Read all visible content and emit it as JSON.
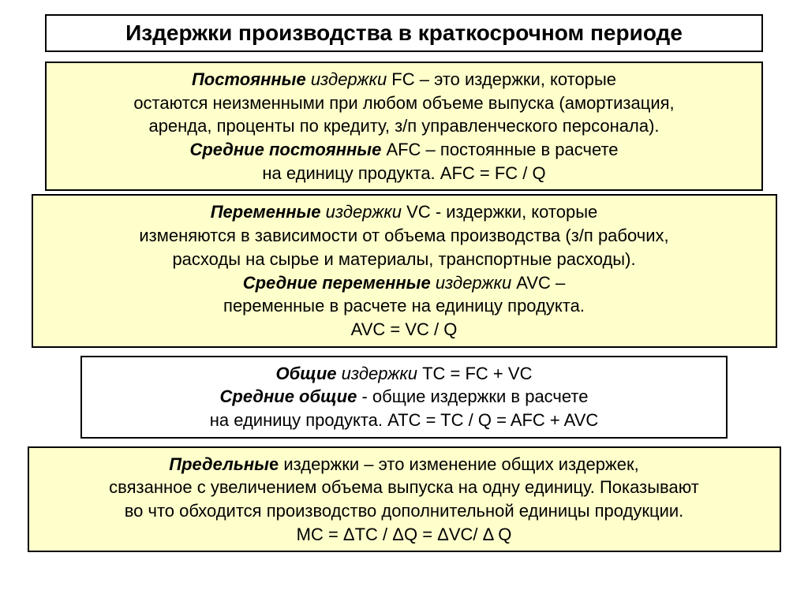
{
  "colors": {
    "yellow_bg": "#ffffcc",
    "white_bg": "#ffffff",
    "border": "#000000",
    "text": "#000000"
  },
  "title": "Издержки производства в краткосрочном периоде",
  "box_fc": {
    "line1_bi": "Постоянные",
    "line1_i": " издержки",
    "line1_r": " FC – это издержки, которые",
    "line2": "остаются неизменными при любом объеме выпуска (амортизация,",
    "line3": "аренда, проценты по кредиту, з/п управленческого персонала).",
    "line4_bi": "Средние постоянные",
    "line4_r": " AFC – постоянные в расчете",
    "line5": "на единицу продукта.  AFC = FC / Q"
  },
  "box_vc": {
    "line1_bi": "Переменные",
    "line1_i": " издержки",
    "line1_r": " VC - издержки, которые",
    "line2": "изменяются в зависимости от объема производства (з/п рабочих,",
    "line3": "расходы на сырье и материалы, транспортные расходы).",
    "line4_bi": "Средние переменные",
    "line4_i": " издержки",
    "line4_r": " AVC –",
    "line5": "переменные в расчете на единицу продукта.",
    "line6": "AVC = VC  / Q"
  },
  "box_tc": {
    "line1_bi": "Общие",
    "line1_i": " издержки",
    "line1_r": " TC = FC + VC",
    "line2_bi": "Средние общие",
    "line2_r": " -  общие издержки в расчете",
    "line3": "на единицу продукта. ATC =  TC / Q = AFC + AVC"
  },
  "box_mc": {
    "line1_bi": "Предельны",
    "line1_b": "е",
    "line1_r": " издержки – это изменение общих издержек,",
    "line2": "связанное с увеличением объема выпуска на одну единицу. Показывают",
    "line3": "во что обходится производство дополнительной единицы продукции.",
    "line4": "MC =   ΔTC /  ΔQ   =   ΔVC/  Δ Q"
  }
}
